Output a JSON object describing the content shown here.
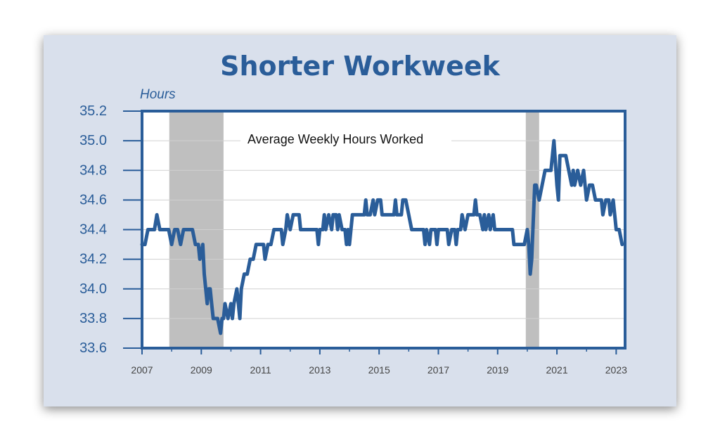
{
  "chart_data": {
    "type": "line",
    "title": "Shorter Workweek",
    "ylabel": "Hours",
    "annotation": "Average Weekly Hours Worked",
    "ylim": [
      33.6,
      35.2
    ],
    "xlim": [
      2007,
      2023.3
    ],
    "yticks": [
      "33.6",
      "33.8",
      "34.0",
      "34.2",
      "34.4",
      "34.6",
      "34.8",
      "35.0",
      "35.2"
    ],
    "xticks": [
      "2007",
      "2009",
      "2011",
      "2013",
      "2015",
      "2017",
      "2019",
      "2021",
      "2023"
    ],
    "grid": true,
    "recessions": [
      [
        2007.92,
        2009.75
      ],
      [
        2019.95,
        2020.4
      ]
    ],
    "series": [
      {
        "color": "#2a5d99",
        "points": [
          [
            2007.0,
            34.3
          ],
          [
            2007.1,
            34.3
          ],
          [
            2007.2,
            34.4
          ],
          [
            2007.3,
            34.4
          ],
          [
            2007.42,
            34.4
          ],
          [
            2007.5,
            34.5
          ],
          [
            2007.6,
            34.4
          ],
          [
            2007.7,
            34.4
          ],
          [
            2007.8,
            34.4
          ],
          [
            2007.9,
            34.4
          ],
          [
            2008.0,
            34.3
          ],
          [
            2008.1,
            34.4
          ],
          [
            2008.2,
            34.4
          ],
          [
            2008.3,
            34.3
          ],
          [
            2008.4,
            34.4
          ],
          [
            2008.5,
            34.4
          ],
          [
            2008.6,
            34.4
          ],
          [
            2008.7,
            34.4
          ],
          [
            2008.8,
            34.3
          ],
          [
            2008.9,
            34.3
          ],
          [
            2008.95,
            34.2
          ],
          [
            2009.05,
            34.3
          ],
          [
            2009.1,
            34.1
          ],
          [
            2009.15,
            34.0
          ],
          [
            2009.2,
            33.9
          ],
          [
            2009.25,
            34.0
          ],
          [
            2009.3,
            34.0
          ],
          [
            2009.35,
            33.9
          ],
          [
            2009.4,
            33.8
          ],
          [
            2009.5,
            33.8
          ],
          [
            2009.55,
            33.8
          ],
          [
            2009.65,
            33.7
          ],
          [
            2009.7,
            33.8
          ],
          [
            2009.75,
            33.8
          ],
          [
            2009.8,
            33.9
          ],
          [
            2009.9,
            33.8
          ],
          [
            2010.0,
            33.9
          ],
          [
            2010.05,
            33.8
          ],
          [
            2010.1,
            33.9
          ],
          [
            2010.2,
            34.0
          ],
          [
            2010.25,
            33.9
          ],
          [
            2010.3,
            33.8
          ],
          [
            2010.35,
            34.0
          ],
          [
            2010.45,
            34.1
          ],
          [
            2010.55,
            34.1
          ],
          [
            2010.65,
            34.2
          ],
          [
            2010.75,
            34.2
          ],
          [
            2010.85,
            34.3
          ],
          [
            2011.0,
            34.3
          ],
          [
            2011.1,
            34.3
          ],
          [
            2011.15,
            34.2
          ],
          [
            2011.25,
            34.3
          ],
          [
            2011.35,
            34.3
          ],
          [
            2011.45,
            34.4
          ],
          [
            2011.55,
            34.4
          ],
          [
            2011.7,
            34.4
          ],
          [
            2011.75,
            34.3
          ],
          [
            2011.85,
            34.4
          ],
          [
            2011.9,
            34.5
          ],
          [
            2012.0,
            34.4
          ],
          [
            2012.1,
            34.5
          ],
          [
            2012.15,
            34.5
          ],
          [
            2012.3,
            34.5
          ],
          [
            2012.35,
            34.4
          ],
          [
            2012.5,
            34.4
          ],
          [
            2012.7,
            34.4
          ],
          [
            2012.9,
            34.4
          ],
          [
            2012.95,
            34.3
          ],
          [
            2013.0,
            34.4
          ],
          [
            2013.1,
            34.4
          ],
          [
            2013.15,
            34.5
          ],
          [
            2013.2,
            34.4
          ],
          [
            2013.3,
            34.5
          ],
          [
            2013.4,
            34.4
          ],
          [
            2013.45,
            34.5
          ],
          [
            2013.55,
            34.5
          ],
          [
            2013.6,
            34.4
          ],
          [
            2013.65,
            34.5
          ],
          [
            2013.75,
            34.4
          ],
          [
            2013.85,
            34.4
          ],
          [
            2013.9,
            34.3
          ],
          [
            2013.95,
            34.4
          ],
          [
            2014.0,
            34.3
          ],
          [
            2014.1,
            34.5
          ],
          [
            2014.3,
            34.5
          ],
          [
            2014.5,
            34.5
          ],
          [
            2014.55,
            34.6
          ],
          [
            2014.6,
            34.5
          ],
          [
            2014.7,
            34.5
          ],
          [
            2014.8,
            34.6
          ],
          [
            2014.85,
            34.5
          ],
          [
            2014.95,
            34.6
          ],
          [
            2015.05,
            34.6
          ],
          [
            2015.1,
            34.5
          ],
          [
            2015.2,
            34.5
          ],
          [
            2015.4,
            34.5
          ],
          [
            2015.5,
            34.5
          ],
          [
            2015.55,
            34.6
          ],
          [
            2015.6,
            34.5
          ],
          [
            2015.7,
            34.5
          ],
          [
            2015.75,
            34.5
          ],
          [
            2015.8,
            34.6
          ],
          [
            2015.9,
            34.6
          ],
          [
            2016.0,
            34.5
          ],
          [
            2016.1,
            34.4
          ],
          [
            2016.3,
            34.4
          ],
          [
            2016.5,
            34.4
          ],
          [
            2016.55,
            34.3
          ],
          [
            2016.6,
            34.4
          ],
          [
            2016.7,
            34.3
          ],
          [
            2016.75,
            34.4
          ],
          [
            2016.9,
            34.4
          ],
          [
            2016.95,
            34.3
          ],
          [
            2017.0,
            34.4
          ],
          [
            2017.1,
            34.4
          ],
          [
            2017.2,
            34.4
          ],
          [
            2017.3,
            34.4
          ],
          [
            2017.35,
            34.3
          ],
          [
            2017.45,
            34.4
          ],
          [
            2017.55,
            34.4
          ],
          [
            2017.6,
            34.3
          ],
          [
            2017.65,
            34.4
          ],
          [
            2017.75,
            34.4
          ],
          [
            2017.8,
            34.5
          ],
          [
            2017.9,
            34.4
          ],
          [
            2018.0,
            34.5
          ],
          [
            2018.1,
            34.5
          ],
          [
            2018.2,
            34.5
          ],
          [
            2018.25,
            34.6
          ],
          [
            2018.3,
            34.5
          ],
          [
            2018.4,
            34.5
          ],
          [
            2018.5,
            34.4
          ],
          [
            2018.55,
            34.5
          ],
          [
            2018.6,
            34.4
          ],
          [
            2018.7,
            34.5
          ],
          [
            2018.75,
            34.4
          ],
          [
            2018.85,
            34.5
          ],
          [
            2018.9,
            34.4
          ],
          [
            2019.0,
            34.4
          ],
          [
            2019.2,
            34.4
          ],
          [
            2019.4,
            34.4
          ],
          [
            2019.5,
            34.4
          ],
          [
            2019.55,
            34.3
          ],
          [
            2019.7,
            34.3
          ],
          [
            2019.85,
            34.3
          ],
          [
            2019.9,
            34.3
          ],
          [
            2020.0,
            34.4
          ],
          [
            2020.05,
            34.3
          ],
          [
            2020.1,
            34.1
          ],
          [
            2020.15,
            34.2
          ],
          [
            2020.25,
            34.7
          ],
          [
            2020.3,
            34.7
          ],
          [
            2020.4,
            34.6
          ],
          [
            2020.5,
            34.7
          ],
          [
            2020.6,
            34.8
          ],
          [
            2020.7,
            34.8
          ],
          [
            2020.8,
            34.8
          ],
          [
            2020.9,
            35.0
          ],
          [
            2021.0,
            34.7
          ],
          [
            2021.05,
            34.6
          ],
          [
            2021.1,
            34.9
          ],
          [
            2021.2,
            34.9
          ],
          [
            2021.3,
            34.9
          ],
          [
            2021.4,
            34.8
          ],
          [
            2021.5,
            34.7
          ],
          [
            2021.55,
            34.8
          ],
          [
            2021.6,
            34.7
          ],
          [
            2021.7,
            34.8
          ],
          [
            2021.8,
            34.7
          ],
          [
            2021.9,
            34.8
          ],
          [
            2022.0,
            34.6
          ],
          [
            2022.1,
            34.7
          ],
          [
            2022.2,
            34.7
          ],
          [
            2022.3,
            34.6
          ],
          [
            2022.4,
            34.6
          ],
          [
            2022.5,
            34.6
          ],
          [
            2022.55,
            34.5
          ],
          [
            2022.65,
            34.6
          ],
          [
            2022.75,
            34.6
          ],
          [
            2022.8,
            34.5
          ],
          [
            2022.9,
            34.6
          ],
          [
            2023.0,
            34.4
          ],
          [
            2023.1,
            34.4
          ],
          [
            2023.2,
            34.3
          ]
        ]
      }
    ]
  }
}
